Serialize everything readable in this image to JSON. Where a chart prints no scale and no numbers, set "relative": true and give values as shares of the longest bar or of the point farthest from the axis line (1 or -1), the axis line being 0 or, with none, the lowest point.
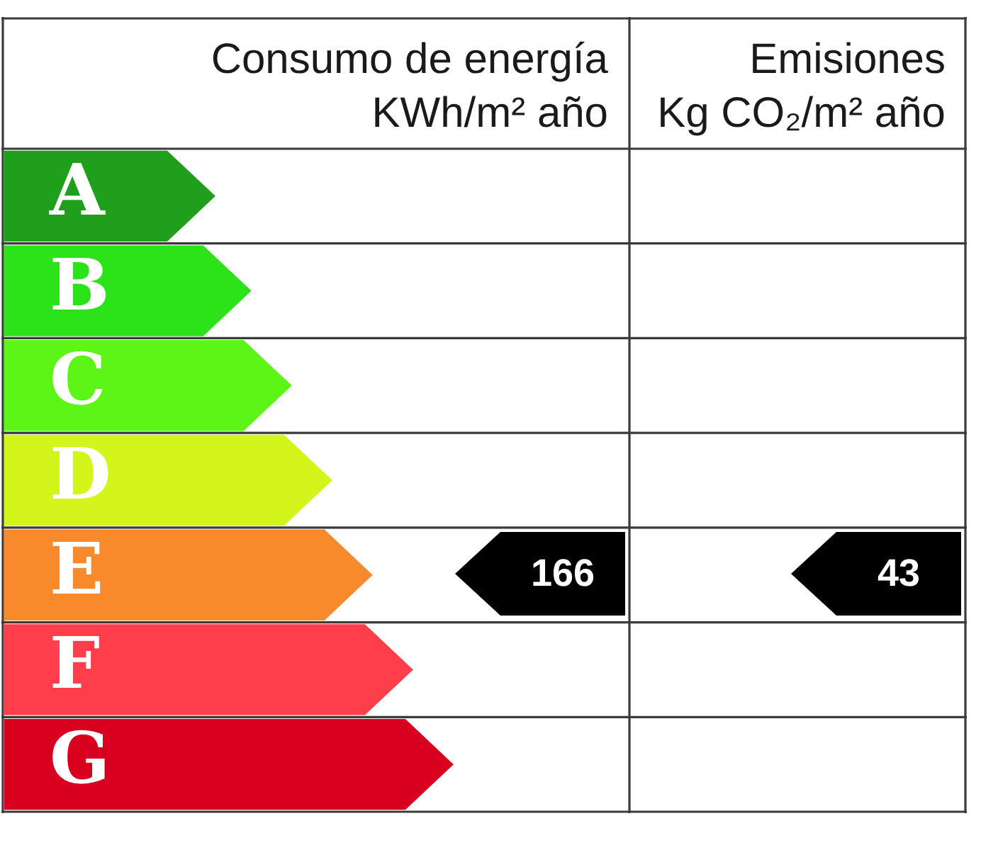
{
  "chart_data": [
    {
      "type": "bar",
      "orientation": "horizontal",
      "relative": true,
      "title": "Consumo de energía",
      "subtitle": "KWh/m² año",
      "categories": [
        "A",
        "B",
        "C",
        "D",
        "E",
        "F",
        "G"
      ],
      "values": [
        0.47,
        0.55,
        0.64,
        0.73,
        0.82,
        0.91,
        1
      ],
      "colors": [
        "#1f9f1b",
        "#2ce31a",
        "#5cf516",
        "#d3f51a",
        "#f88a2c",
        "#ff3e4b",
        "#d9001f"
      ],
      "grid": "y",
      "annotations": [
        "166"
      ]
    },
    {
      "type": "other",
      "title": "Emisiones",
      "subtitle": "Kg CO₂/m² año",
      "annotations": [
        "43"
      ]
    }
  ]
}
